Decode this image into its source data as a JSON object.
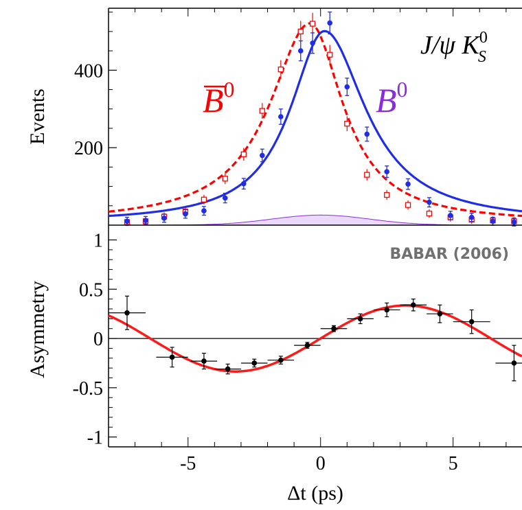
{
  "chart_data": [
    {
      "type": "scatter",
      "panel": "top",
      "title": "",
      "xlabel": "",
      "ylabel": "Events",
      "xlim": [
        -8,
        7.6
      ],
      "ylim": [
        0,
        560
      ],
      "yticks": [
        200,
        400
      ],
      "ytick_labels": [
        "200",
        "400"
      ],
      "grid": false,
      "legend_position": "inline labels",
      "annotation": "J/ψ K⁰_S",
      "colors": {
        "b0bar": "#ff0000",
        "b0": "#1f2de6",
        "b0_label": "#8a2be2",
        "background": "#8a2be2"
      },
      "series": [
        {
          "name": "B̄⁰",
          "marker": "open-square",
          "x": [
            -7.3,
            -6.6,
            -5.9,
            -5.1,
            -4.4,
            -3.6,
            -2.9,
            -2.2,
            -1.5,
            -0.75,
            -0.3,
            0.35,
            1.0,
            1.75,
            2.5,
            3.3,
            4.1,
            4.9,
            5.7,
            6.5,
            7.3
          ],
          "y": [
            8,
            10,
            22,
            35,
            66,
            120,
            183,
            295,
            402,
            500,
            520,
            440,
            262,
            130,
            78,
            52,
            30,
            20,
            14,
            12,
            10
          ]
        },
        {
          "name": "B⁰",
          "marker": "filled-circle",
          "x": [
            -7.3,
            -6.6,
            -5.9,
            -5.1,
            -4.4,
            -3.6,
            -2.9,
            -2.2,
            -1.5,
            -0.75,
            -0.3,
            0.35,
            1.0,
            1.75,
            2.5,
            3.3,
            4.1,
            4.9,
            5.7,
            6.5,
            7.3
          ],
          "y": [
            10,
            12,
            18,
            29,
            37,
            70,
            107,
            180,
            280,
            450,
            470,
            522,
            357,
            235,
            138,
            106,
            59,
            25,
            20,
            10,
            8
          ]
        }
      ]
    },
    {
      "type": "scatter",
      "panel": "bottom",
      "title": "",
      "xlabel": "Δt (ps)",
      "ylabel": "Asymmetry",
      "xlim": [
        -8,
        7.6
      ],
      "ylim": [
        -1.1,
        1.15
      ],
      "xticks": [
        -5,
        0,
        5
      ],
      "xtick_labels": [
        "-5",
        "0",
        "5"
      ],
      "yticks": [
        1,
        0.5,
        0,
        -0.5,
        -1
      ],
      "ytick_labels": [
        "1",
        "0.5",
        "0",
        "-0.5",
        "-1"
      ],
      "grid": false,
      "annotation": "BABAR (2006)",
      "colors": {
        "points": "#000000",
        "fit": "#ff1a1a"
      },
      "points": {
        "x": [
          -7.3,
          -5.6,
          -4.4,
          -3.5,
          -2.5,
          -1.5,
          -0.5,
          0.5,
          1.5,
          2.5,
          3.5,
          4.5,
          5.7,
          7.3
        ],
        "xerr": [
          0.7,
          0.6,
          0.5,
          0.5,
          0.5,
          0.5,
          0.5,
          0.5,
          0.5,
          0.5,
          0.5,
          0.5,
          0.7,
          0.7
        ],
        "y": [
          0.26,
          -0.19,
          -0.23,
          -0.31,
          -0.25,
          -0.22,
          -0.07,
          0.1,
          0.2,
          0.29,
          0.34,
          0.25,
          0.17,
          -0.25
        ],
        "yerr": [
          0.17,
          0.1,
          0.08,
          0.05,
          0.04,
          0.04,
          0.03,
          0.03,
          0.05,
          0.07,
          0.06,
          0.09,
          0.12,
          0.18
        ]
      },
      "fit": {
        "amplitude": 0.335,
        "frequency": 0.489
      }
    }
  ],
  "labels": {
    "top_ylabel": "Events",
    "bottom_ylabel": "Asymmetry",
    "xlabel": "Δt (ps)",
    "decay_main": "J/ψ K",
    "decay_sup": "0",
    "decay_sub": "S",
    "b0bar_label": "B",
    "b0_label": "B",
    "label_sup": "0",
    "experiment": "BABAR (2006)"
  }
}
